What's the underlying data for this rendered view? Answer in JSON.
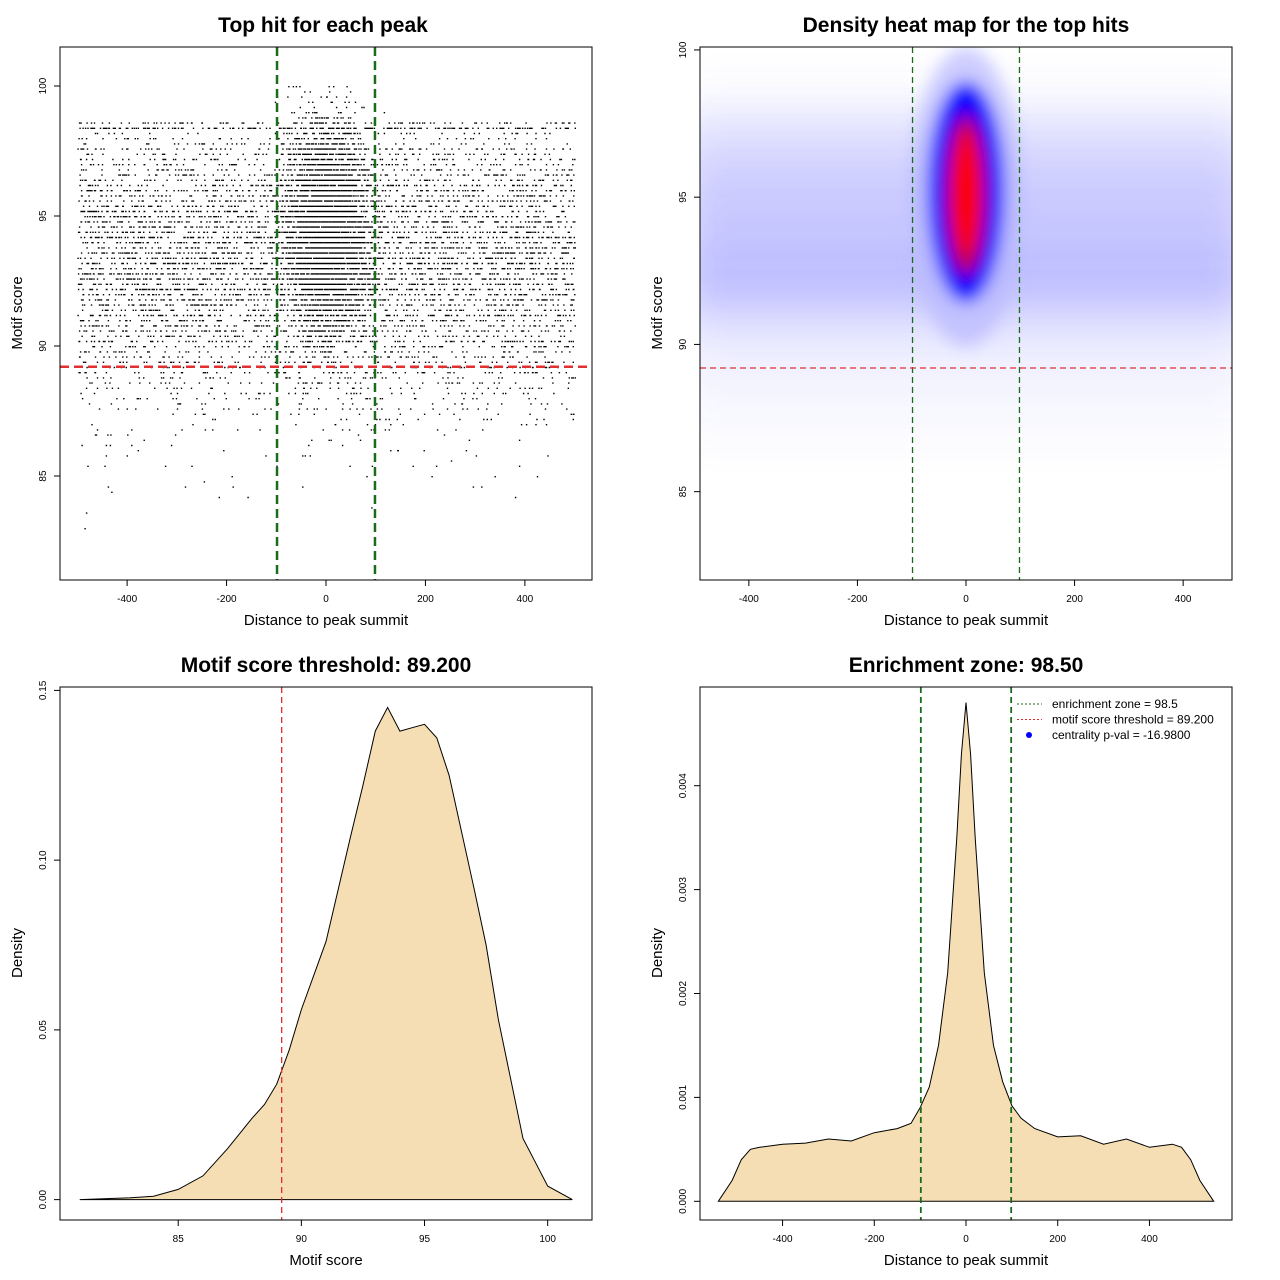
{
  "colors": {
    "green_line": "#1a6b1a",
    "red_line": "#e03030",
    "density_fill": "#f5deb3",
    "point": "#000000",
    "legend_point": "#0000ff"
  },
  "chart_data": [
    {
      "type": "scatter",
      "title": "Top hit for each peak",
      "xlabel": "Distance to peak summit",
      "ylabel": "Motif score",
      "xlim": [
        -535,
        535
      ],
      "ylim": [
        81,
        101.5
      ],
      "xticks": [
        -400,
        -200,
        0,
        200,
        400
      ],
      "xtick_labels": [
        "-400",
        "-200",
        "0",
        "200",
        "400"
      ],
      "yticks": [
        85,
        90,
        95,
        100
      ],
      "ytick_labels": [
        "85",
        "90",
        "95",
        "100"
      ],
      "vlines": [
        -98.5,
        98.5
      ],
      "hline": 89.2,
      "distribution": {
        "x_range": [
          -500,
          500
        ],
        "y_range": [
          82,
          100
        ],
        "background_center_score": 93.5,
        "central_peak_x": 0,
        "central_peak_score": 94.5
      },
      "grid": false
    },
    {
      "type": "heatmap",
      "title": "Density heat map for the top hits",
      "xlabel": "Distance to peak summit",
      "ylabel": "Motif score",
      "xlim": [
        -490,
        490
      ],
      "ylim": [
        82,
        100.1
      ],
      "xticks": [
        -400,
        -200,
        0,
        200,
        400
      ],
      "xtick_labels": [
        "-400",
        "-200",
        "0",
        "200",
        "400"
      ],
      "yticks": [
        85,
        90,
        95,
        100
      ],
      "ytick_labels": [
        "85",
        "90",
        "95",
        "100"
      ],
      "vlines": [
        -98.5,
        98.5
      ],
      "hline": 89.2,
      "hot_spot": {
        "x": 0,
        "y": 95
      },
      "colorscale": [
        "#ffffff",
        "#0000ff",
        "#ff0000"
      ],
      "grid": false
    },
    {
      "type": "area",
      "title": "Motif score threshold: 89.200",
      "xlabel": "Motif score",
      "ylabel": "Density",
      "xlim": [
        80.2,
        101.8
      ],
      "ylim": [
        -0.006,
        0.151
      ],
      "xticks": [
        85,
        90,
        95,
        100
      ],
      "xtick_labels": [
        "85",
        "90",
        "95",
        "100"
      ],
      "yticks": [
        0,
        0.05,
        0.1,
        0.15
      ],
      "ytick_labels": [
        "0.00",
        "0.05",
        "0.10",
        "0.15"
      ],
      "vline": 89.2,
      "x": [
        81,
        83,
        84,
        85,
        86,
        87,
        88,
        88.5,
        89,
        89.5,
        90,
        91,
        92,
        92.5,
        93,
        93.5,
        94,
        94.5,
        95,
        95.5,
        96,
        97,
        97.5,
        98,
        99,
        99.5,
        100,
        101
      ],
      "y": [
        0,
        0.0005,
        0.001,
        0.003,
        0.007,
        0.015,
        0.024,
        0.028,
        0.034,
        0.044,
        0.056,
        0.076,
        0.107,
        0.122,
        0.138,
        0.145,
        0.138,
        0.139,
        0.14,
        0.136,
        0.125,
        0.092,
        0.075,
        0.053,
        0.018,
        0.011,
        0.004,
        0
      ],
      "grid": false
    },
    {
      "type": "area",
      "title": "Enrichment zone: 98.50",
      "xlabel": "Distance to peak summit",
      "ylabel": "Density",
      "xlim": [
        -580,
        580
      ],
      "ylim": [
        -0.00018,
        0.00495
      ],
      "xticks": [
        -400,
        -200,
        0,
        200,
        400
      ],
      "xtick_labels": [
        "-400",
        "-200",
        "0",
        "200",
        "400"
      ],
      "yticks": [
        0,
        0.001,
        0.002,
        0.003,
        0.004
      ],
      "ytick_labels": [
        "0.000",
        "0.001",
        "0.002",
        "0.003",
        "0.004"
      ],
      "vlines": [
        -98.5,
        98.5
      ],
      "x": [
        -540,
        -510,
        -490,
        -470,
        -450,
        -400,
        -350,
        -300,
        -250,
        -200,
        -150,
        -120,
        -100,
        -80,
        -60,
        -40,
        -20,
        -10,
        0,
        10,
        20,
        40,
        60,
        80,
        100,
        120,
        150,
        200,
        250,
        300,
        350,
        400,
        450,
        470,
        490,
        510,
        540
      ],
      "y": [
        0,
        0.0002,
        0.0004,
        0.0005,
        0.00052,
        0.00055,
        0.00056,
        0.0006,
        0.00058,
        0.00066,
        0.0007,
        0.00075,
        0.0009,
        0.0011,
        0.0015,
        0.0022,
        0.0035,
        0.0043,
        0.0048,
        0.0043,
        0.0035,
        0.0022,
        0.0015,
        0.00115,
        0.00092,
        0.0008,
        0.0007,
        0.00062,
        0.00063,
        0.00055,
        0.0006,
        0.00052,
        0.00055,
        0.00052,
        0.0004,
        0.0002,
        0
      ],
      "legend": {
        "placement": "top-right",
        "entries": [
          {
            "label": "enrichment zone = 98.5",
            "color": "#1a6b1a",
            "style": "dotted-line"
          },
          {
            "label": "motif score threshold = 89.200",
            "color": "#e03030",
            "style": "dotted-line"
          },
          {
            "label": "centrality p-val = -16.9800",
            "color": "#0000ff",
            "style": "point"
          }
        ]
      },
      "grid": false
    }
  ]
}
